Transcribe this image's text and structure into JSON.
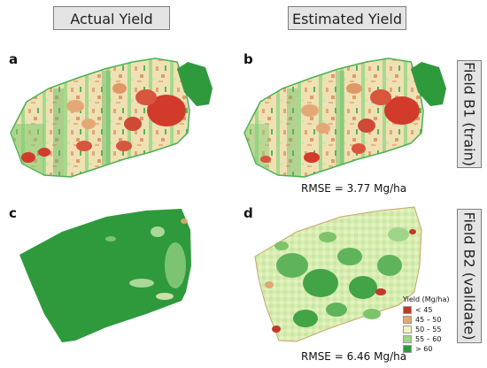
{
  "headers": {
    "actual": "Actual Yield",
    "estimated": "Estimated Yield"
  },
  "side_labels": {
    "field_b1": "Field B1 (train)",
    "field_b2": "Field B2 (validate)"
  },
  "panels": {
    "a": "a",
    "b": "b",
    "c": "c",
    "d": "d"
  },
  "rmse": {
    "b": "RMSE = 3.77 Mg/ha",
    "d": "RMSE = 6.46 Mg/ha"
  },
  "legend": {
    "title": "Yield (Mg/ha)",
    "items": [
      {
        "label": "< 45",
        "color": "#c0392b"
      },
      {
        "label": "45 – 50",
        "color": "#e0a873"
      },
      {
        "label": "50 – 55",
        "color": "#f3f0c2"
      },
      {
        "label": "55 – 60",
        "color": "#9fd589"
      },
      {
        "label": "> 60",
        "color": "#2e9a3c"
      }
    ]
  }
}
